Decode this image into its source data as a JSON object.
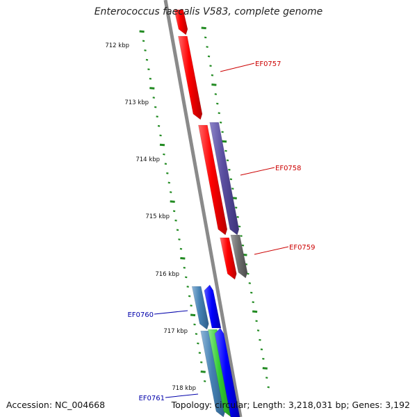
{
  "title": "Enterococcus faecalis V583, complete genome",
  "footer": {
    "accession": "Accession: NC_004668",
    "summary": "Topology: circular; Length: 3,218,031 bp; Genes: 3,192"
  },
  "ruler_labels": [
    "712 kbp",
    "713 kbp",
    "714 kbp",
    "715 kbp",
    "716 kbp",
    "717 kbp",
    "718 kbp"
  ],
  "genes": [
    {
      "name": "EF0757",
      "color": "#cc0000"
    },
    {
      "name": "EF0758",
      "color": "#cc0000"
    },
    {
      "name": "EF0759",
      "color": "#cc0000"
    },
    {
      "name": "EF0760",
      "color": "#0000aa"
    },
    {
      "name": "EF0761",
      "color": "#0000aa"
    }
  ],
  "colors": {
    "forward_strand": "#ff0000",
    "cog_purple": "#5a4fa0",
    "cog_gray": "#707070",
    "reverse_strand": "#0000ff",
    "cog_steelblue": "#4682b4",
    "cog_green": "#33cc33",
    "backbone": "#8a8a8a",
    "ruler": "#228b22"
  }
}
